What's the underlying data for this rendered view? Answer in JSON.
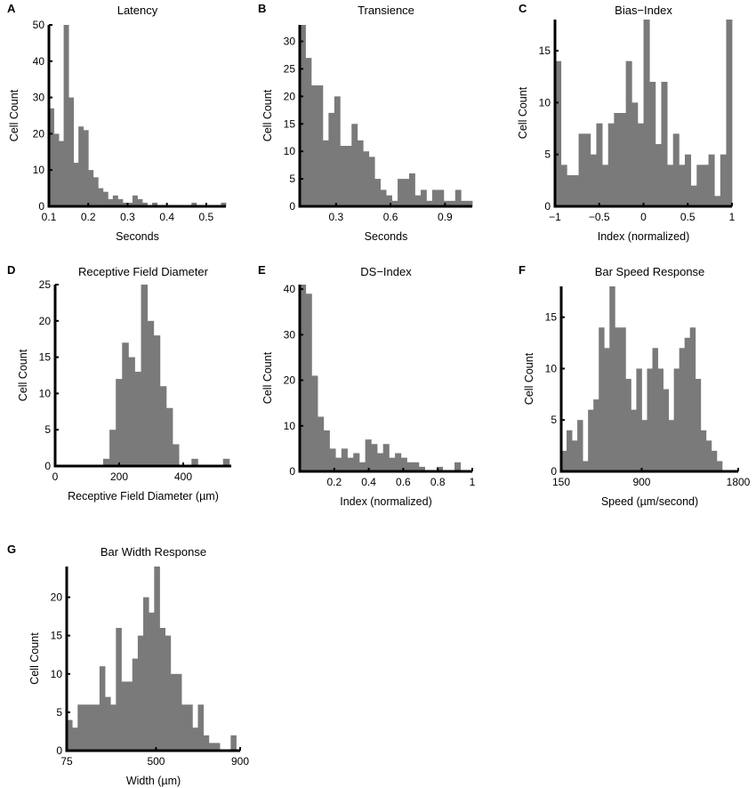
{
  "colors": {
    "bar": "#7a7a7a",
    "axis": "#000000",
    "background": "#ffffff"
  },
  "chart_data": [
    {
      "letter": "A",
      "type": "bar",
      "title": "Latency",
      "xlabel": "Seconds",
      "ylabel": "",
      "xlim": [
        0.1,
        0.55
      ],
      "ylim": [
        0,
        50
      ],
      "bin_edges_start": 0.1,
      "bin_width": 0.0125,
      "values": [
        27,
        20,
        18,
        50,
        30,
        12,
        22,
        21,
        10,
        8,
        5,
        4,
        2,
        3,
        2,
        1,
        1,
        3,
        2,
        1,
        0,
        1,
        0,
        0,
        0,
        0,
        0,
        0,
        0,
        1,
        0,
        0,
        0,
        0,
        0,
        1
      ],
      "xticks": [
        0.1,
        0.2,
        0.3,
        0.4,
        0.5
      ],
      "xtick_labels": [
        "0.1",
        "0.2",
        "0.3",
        "0.4",
        "0.5"
      ],
      "yticks": [
        0,
        10,
        20,
        30,
        40,
        50
      ],
      "ytick_labels": [
        "0",
        "10",
        "20",
        "30",
        "40",
        "50"
      ]
    },
    {
      "letter": "B",
      "type": "bar",
      "title": "Transience",
      "xlabel": "Seconds",
      "ylabel": "Cell Count",
      "xlim": [
        0.1,
        1.05
      ],
      "ylim": [
        0,
        33
      ],
      "bin_edges_start": 0.1,
      "bin_width": 0.0317,
      "values": [
        33,
        27,
        22,
        22,
        12,
        17,
        20,
        11,
        11,
        15,
        12,
        10,
        9,
        5,
        3,
        2,
        1,
        5,
        5,
        6,
        2,
        3,
        1,
        3,
        3,
        1,
        1,
        3,
        1,
        1
      ],
      "xticks": [
        0.3,
        0.6,
        0.9
      ],
      "xtick_labels": [
        "0.3",
        "0.6",
        "0.9"
      ],
      "yticks": [
        0,
        5,
        10,
        15,
        20,
        25,
        30
      ],
      "ytick_labels": [
        "0",
        "5",
        "10",
        "15",
        "20",
        "25",
        "30"
      ]
    },
    {
      "letter": "C",
      "type": "bar",
      "title": "Bias−Index",
      "xlabel": "Index (normalized)",
      "ylabel": "Cell Count",
      "xlim": [
        -1,
        1
      ],
      "ylim": [
        0,
        18
      ],
      "bin_edges_start": -1,
      "bin_width": 0.0667,
      "values": [
        14,
        4,
        3,
        3,
        7,
        7,
        5,
        8,
        4,
        8,
        9,
        9,
        14,
        10,
        8,
        18,
        12,
        6,
        12,
        4,
        7,
        4,
        5,
        2,
        4,
        4,
        5,
        1,
        5,
        18
      ],
      "xticks": [
        -1,
        -0.5,
        0,
        0.5,
        1
      ],
      "xtick_labels": [
        "−1",
        "−0.5",
        "0",
        "0.5",
        "1"
      ],
      "yticks": [
        0,
        5,
        10,
        15
      ],
      "ytick_labels": [
        "0",
        "5",
        "10",
        "15"
      ]
    },
    {
      "letter": "D",
      "type": "bar",
      "title": "Receptive Field Diameter",
      "xlabel": "Receptive Field Diameter (µm)",
      "ylabel": "Cell Count",
      "xlim": [
        0,
        550
      ],
      "ylim": [
        0,
        25
      ],
      "bin_edges_start": 150,
      "bin_width": 19.7,
      "values": [
        1,
        5,
        12,
        17,
        15,
        13,
        25,
        20,
        18,
        11,
        8,
        3,
        0,
        0,
        1,
        0,
        0,
        0,
        0,
        1
      ],
      "xticks": [
        0,
        200,
        400
      ],
      "xtick_labels": [
        "0",
        "200",
        "400"
      ],
      "yticks": [
        0,
        5,
        10,
        15,
        20,
        25
      ],
      "ytick_labels": [
        "0",
        "5",
        "10",
        "15",
        "20",
        "25"
      ]
    },
    {
      "letter": "E",
      "type": "bar",
      "title": "DS−Index",
      "xlabel": "Index (normalized)",
      "ylabel": "Cell Count",
      "xlim": [
        0,
        1
      ],
      "ylim": [
        0,
        41
      ],
      "bin_edges_start": 0,
      "bin_width": 0.0345,
      "values": [
        41,
        39,
        21,
        12,
        9,
        5,
        3,
        5,
        3,
        4,
        2,
        7,
        6,
        4,
        6,
        3,
        4,
        3,
        2,
        2,
        1,
        0,
        0,
        1,
        0,
        0,
        2,
        0,
        0
      ],
      "xticks": [
        0.2,
        0.4,
        0.6,
        0.8,
        1
      ],
      "xtick_labels": [
        "0.2",
        "0.4",
        "0.6",
        "0.8",
        "1"
      ],
      "yticks": [
        0,
        10,
        20,
        30,
        40
      ],
      "ytick_labels": [
        "0",
        "10",
        "20",
        "30",
        "40"
      ]
    },
    {
      "letter": "F",
      "type": "bar",
      "title": "Bar Speed Response",
      "xlabel": "Speed (µm/second)",
      "ylabel": "Cell Count",
      "xlim": [
        150,
        1800
      ],
      "ylim": [
        0,
        18
      ],
      "bin_edges_start": 150,
      "bin_width": 50,
      "values": [
        2,
        4,
        3,
        5,
        1,
        6,
        7,
        14,
        12,
        18,
        14,
        14,
        9,
        6,
        10,
        5,
        10,
        12,
        10,
        8,
        5,
        10,
        12,
        13,
        14,
        9,
        4,
        3,
        2,
        1
      ],
      "xticks": [
        150,
        900,
        1800
      ],
      "xtick_labels": [
        "150",
        "900",
        "1800"
      ],
      "yticks": [
        0,
        5,
        10,
        15
      ],
      "ytick_labels": [
        "0",
        "5",
        "10",
        "15"
      ]
    },
    {
      "letter": "G",
      "type": "bar",
      "title": "Bar Width Response",
      "xlabel": "Width (µm)",
      "ylabel": "Cell Count",
      "xlim": [
        75,
        900
      ],
      "ylim": [
        0,
        24
      ],
      "bin_edges_start": 75,
      "bin_width": 26,
      "values": [
        4,
        3,
        6,
        6,
        6,
        6,
        11,
        7,
        6,
        16,
        9,
        9,
        12,
        15,
        20,
        18,
        24,
        16,
        15,
        10,
        10,
        6,
        6,
        3,
        6,
        2,
        1,
        1,
        0,
        0,
        2
      ],
      "xticks": [
        75,
        500,
        900
      ],
      "xtick_labels": [
        "75",
        "500",
        "900"
      ],
      "yticks": [
        0,
        5,
        10,
        15,
        20
      ],
      "ytick_labels": [
        "0",
        "5",
        "10",
        "15",
        "20"
      ]
    }
  ],
  "extra_ylabel": "Cell Count"
}
